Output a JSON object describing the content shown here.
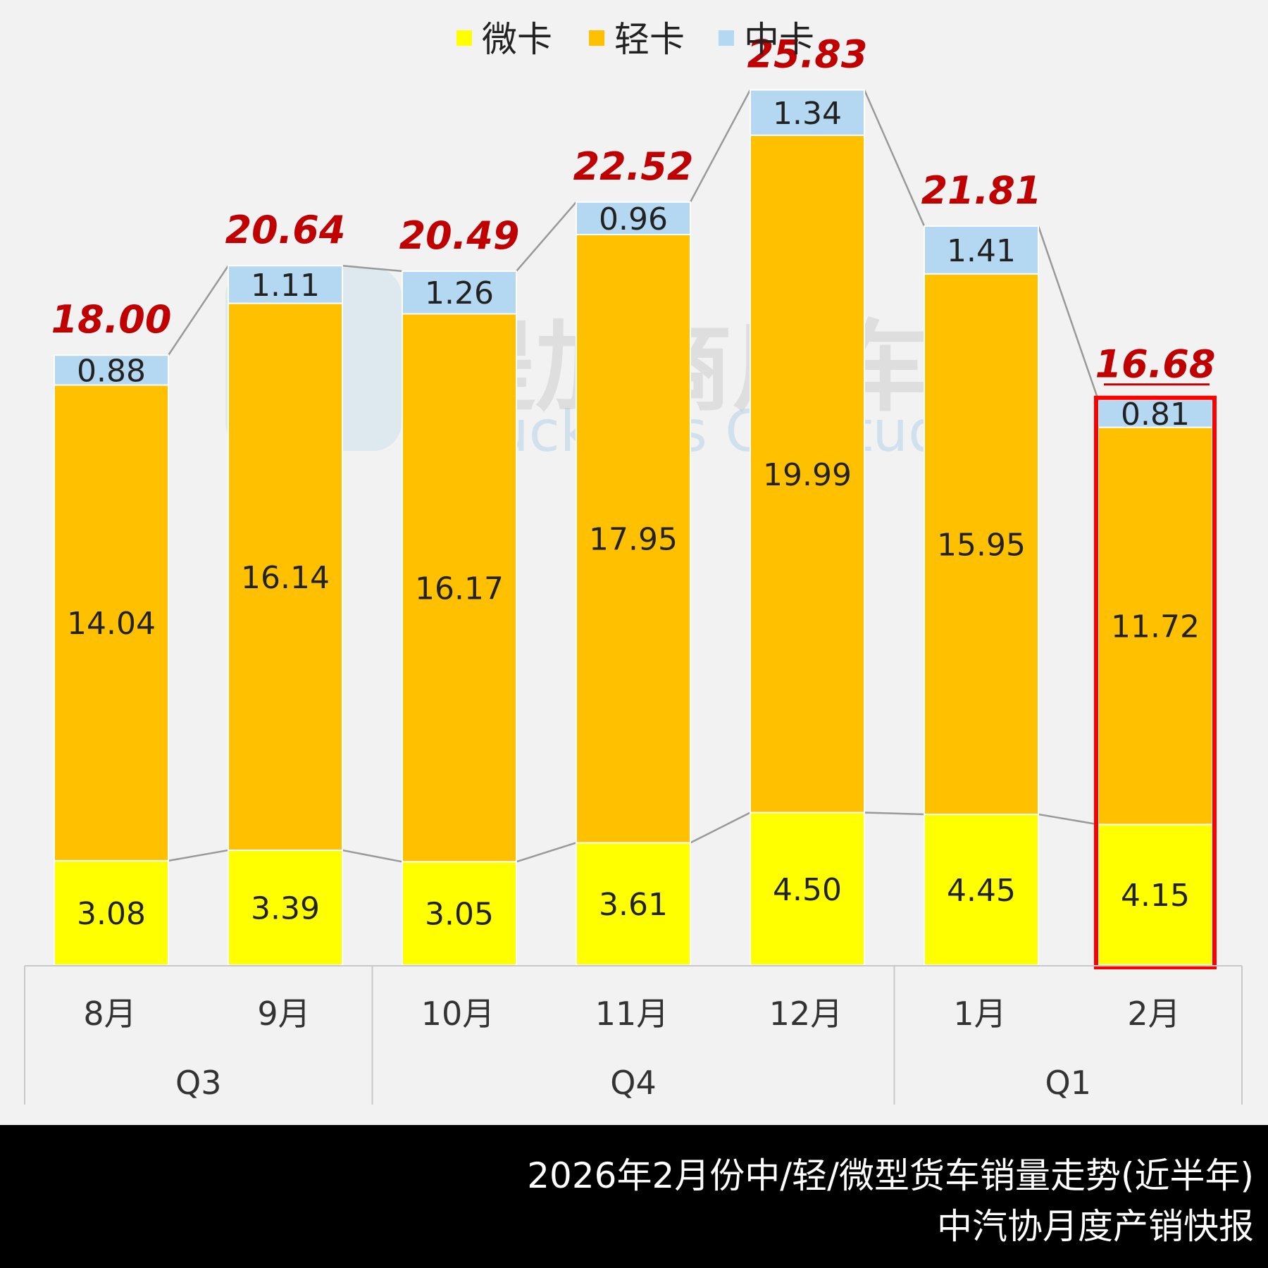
{
  "watermark": {
    "cn": "提加商用车",
    "en": "TruckPlus CV studio"
  },
  "footer": {
    "title": "2026年2月份中/轻/微型货车销量走势(近半年)",
    "source": "中汽协月度产销快报"
  },
  "chart_data": {
    "type": "bar",
    "stacked": true,
    "categories": [
      "8月",
      "9月",
      "10月",
      "11月",
      "12月",
      "1月",
      "2月"
    ],
    "groups": [
      {
        "name": "Q3",
        "categories": [
          "8月",
          "9月"
        ]
      },
      {
        "name": "Q4",
        "categories": [
          "10月",
          "11月",
          "12月"
        ]
      },
      {
        "name": "Q1",
        "categories": [
          "1月",
          "2月"
        ]
      }
    ],
    "series": [
      {
        "name": "微卡",
        "color": "#ffff00",
        "values": [
          3.08,
          3.39,
          3.05,
          3.61,
          4.5,
          4.45,
          4.15
        ]
      },
      {
        "name": "轻卡",
        "color": "#ffc000",
        "values": [
          14.04,
          16.14,
          16.17,
          17.95,
          19.99,
          15.95,
          11.72
        ]
      },
      {
        "name": "中卡",
        "color": "#b4d7f2",
        "values": [
          0.88,
          1.11,
          1.26,
          0.96,
          1.34,
          1.41,
          0.81
        ]
      }
    ],
    "segment_labels": [
      [
        "3.08",
        "3.39",
        "3.05",
        "3.61",
        "4.50",
        "4.45",
        "4.15"
      ],
      [
        "14.04",
        "16.14",
        "16.17",
        "17.95",
        "19.99",
        "15.95",
        "11.72"
      ],
      [
        "0.88",
        "1.11",
        "1.26",
        "0.96",
        "1.34",
        "1.41",
        "0.81"
      ]
    ],
    "totals": [
      "18.00",
      "20.64",
      "20.49",
      "22.52",
      "25.83",
      "21.81",
      "16.68"
    ],
    "highlight": {
      "category": "2月",
      "color": "#ff0000"
    },
    "legend_position": "top-center",
    "ylim": [
      0,
      30
    ],
    "grid": false,
    "title": "",
    "xlabel": "",
    "ylabel": ""
  }
}
